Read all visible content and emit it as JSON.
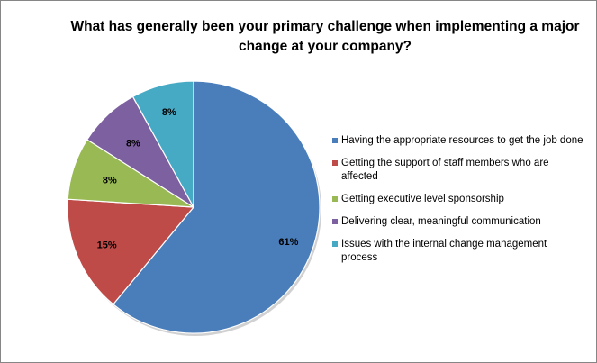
{
  "chart_data": {
    "type": "pie",
    "title": "What has generally been your primary challenge when implementing a major change at your company?",
    "slices": [
      {
        "name": "Having the appropriate resources to get the job done",
        "value": 61,
        "label": "61%",
        "color": "#4a7ebb"
      },
      {
        "name": "Getting the support of staff members who are affected",
        "value": 15,
        "label": "15%",
        "color": "#be4b48"
      },
      {
        "name": "Getting executive level sponsorship",
        "value": 8,
        "label": "8%",
        "color": "#98b954"
      },
      {
        "name": "Delivering clear, meaningful communication",
        "value": 8,
        "label": "8%",
        "color": "#7d60a0"
      },
      {
        "name": "Issues with the internal change management process",
        "value": 8,
        "label": "8%",
        "color": "#46aac5"
      }
    ],
    "legend_position": "right"
  }
}
